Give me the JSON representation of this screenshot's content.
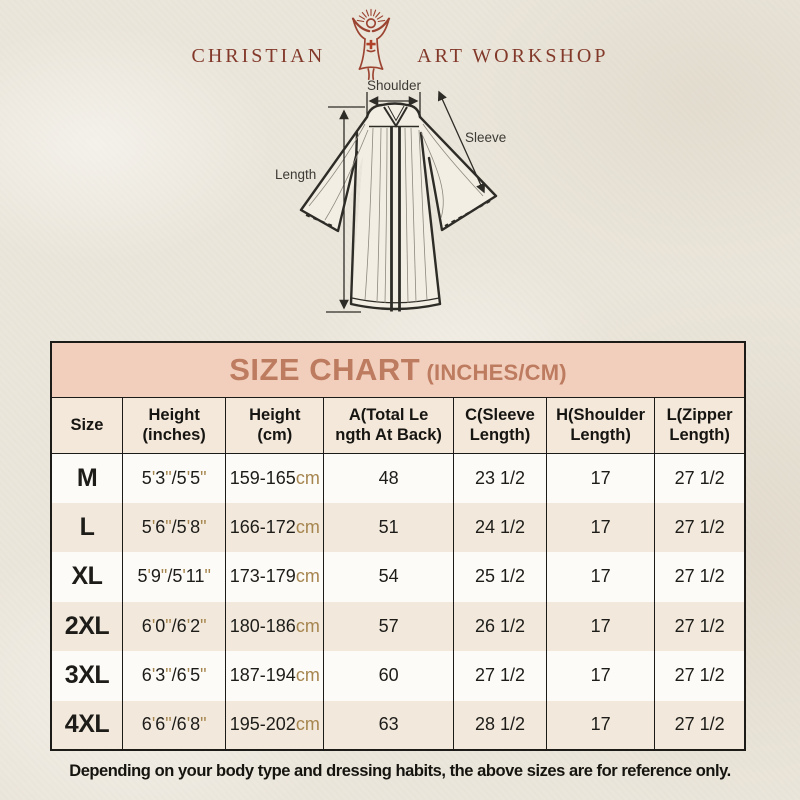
{
  "logo": {
    "text_left": "CHRISTIAN",
    "text_right": "ART WORKSHOP",
    "icon": "radiant-christ-figure",
    "color": "#82392a"
  },
  "diagram": {
    "labels": {
      "shoulder": "Shoulder",
      "sleeve": "Sleeve",
      "length": "Length"
    }
  },
  "size_chart": {
    "title": "SIZE CHART",
    "title_suffix": "(INCHES/CM)",
    "columns": [
      [
        "Size"
      ],
      [
        "Height",
        "(inches)"
      ],
      [
        "Height",
        "(cm)"
      ],
      [
        "A(Total Le",
        "ngth At Back)"
      ],
      [
        "C(Sleeve",
        "Length)"
      ],
      [
        "H(Shoulder",
        "Length)"
      ],
      [
        "L(Zipper",
        "Length)"
      ]
    ],
    "rows": [
      [
        "M",
        "5'3\"/5'5\"",
        "159-165cm",
        "48",
        "23 1/2",
        "17",
        "27 1/2"
      ],
      [
        "L",
        "5'6\"/5'8\"",
        "166-172cm",
        "51",
        "24 1/2",
        "17",
        "27 1/2"
      ],
      [
        "XL",
        "5'9\"/5'11\"",
        "173-179cm",
        "54",
        "25 1/2",
        "17",
        "27 1/2"
      ],
      [
        "2XL",
        "6'0\"/6'2\"",
        "180-186cm",
        "57",
        "26 1/2",
        "17",
        "27 1/2"
      ],
      [
        "3XL",
        "6'3\"/6'5\"",
        "187-194cm",
        "60",
        "27 1/2",
        "17",
        "27 1/2"
      ],
      [
        "4XL",
        "6'6\"/6'8\"",
        "195-202cm",
        "63",
        "28 1/2",
        "17",
        "27 1/2"
      ]
    ],
    "colors": {
      "title_bg": "#f2cfbc",
      "title_text": "#bd7b60",
      "header_bg": "#f3e8da",
      "row_bg": "#fcfbf8",
      "row_alt_bg": "#f2e9dc",
      "accent_marks": "#a6854e",
      "border": "#1d1b17"
    }
  },
  "footnote": "Depending on your body type and dressing habits, the above sizes are for reference only."
}
